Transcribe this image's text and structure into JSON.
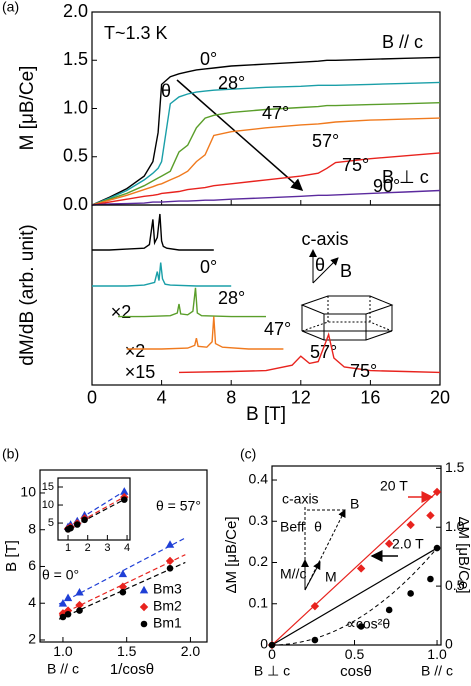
{
  "panel_labels": [
    "(a)",
    "(b)",
    "(c)"
  ],
  "chart_data": [
    {
      "type": "line",
      "x": [
        0,
        1,
        2,
        3,
        3.5,
        3.8,
        4,
        4.5,
        5,
        5.5,
        6,
        6.5,
        7,
        8,
        10,
        12,
        13,
        13.5,
        14,
        16,
        18,
        20
      ],
      "xlim": [
        0,
        20
      ],
      "xticks": [
        0,
        4,
        8,
        12,
        16,
        20
      ],
      "show_xtick_labels": false,
      "ylim": [
        0,
        2
      ],
      "yticks": [
        {
          "value": 0,
          "label": "0.0"
        },
        0.5,
        {
          "value": 1,
          "label": "1.0"
        },
        1.5,
        {
          "value": 2,
          "label": "2.0"
        }
      ],
      "ylabel": "M [μB/Ce]",
      "annotations": [
        "T~1.3 K",
        "B // c",
        "B ⊥ c",
        "θ"
      ],
      "series": [
        {
          "name": "0°",
          "color": "#000000",
          "values": [
            0,
            0.08,
            0.17,
            0.3,
            0.45,
            0.75,
            1.25,
            1.33,
            1.36,
            1.38,
            1.4,
            1.41,
            1.42,
            1.44,
            1.46,
            1.48,
            1.49,
            1.5,
            1.5,
            1.51,
            1.52,
            1.53
          ]
        },
        {
          "name": "28°",
          "color": "#1a9fa8",
          "values": [
            0,
            0.07,
            0.15,
            0.26,
            0.33,
            0.38,
            0.45,
            1.05,
            1.12,
            1.15,
            1.17,
            1.18,
            1.19,
            1.2,
            1.22,
            1.23,
            1.24,
            1.24,
            1.24,
            1.25,
            1.26,
            1.27
          ]
        },
        {
          "name": "47°",
          "color": "#5a9e2a",
          "values": [
            0,
            0.06,
            0.12,
            0.2,
            0.25,
            0.28,
            0.3,
            0.35,
            0.55,
            0.62,
            0.8,
            0.9,
            0.93,
            0.96,
            0.99,
            1.01,
            1.02,
            1.03,
            1.03,
            1.04,
            1.05,
            1.06
          ]
        },
        {
          "name": "57°",
          "color": "#f07a1e",
          "values": [
            0,
            0.05,
            0.1,
            0.16,
            0.19,
            0.21,
            0.22,
            0.26,
            0.3,
            0.35,
            0.45,
            0.52,
            0.72,
            0.76,
            0.8,
            0.83,
            0.84,
            0.85,
            0.86,
            0.88,
            0.89,
            0.9
          ]
        },
        {
          "name": "75°",
          "color": "#e8231e",
          "values": [
            0,
            0.03,
            0.06,
            0.09,
            0.1,
            0.11,
            0.12,
            0.13,
            0.14,
            0.16,
            0.17,
            0.18,
            0.2,
            0.22,
            0.26,
            0.3,
            0.33,
            0.38,
            0.44,
            0.48,
            0.51,
            0.54
          ]
        },
        {
          "name": "90°",
          "color": "#5b2a9e",
          "values": [
            0,
            0.01,
            0.015,
            0.02,
            0.03,
            0.03,
            0.03,
            0.035,
            0.04,
            0.04,
            0.045,
            0.05,
            0.05,
            0.06,
            0.075,
            0.09,
            0.1,
            0.1,
            0.105,
            0.12,
            0.135,
            0.15
          ]
        }
      ]
    },
    {
      "type": "line",
      "xlim": [
        0,
        20
      ],
      "xticks": [
        0,
        4,
        8,
        12,
        16,
        20
      ],
      "xlabel": "B [T]",
      "ylim": [
        0,
        10
      ],
      "ylabel": "dM/dB (arb. unit)",
      "annotations": [
        "×2",
        "×2",
        "×15",
        "c-axis",
        "θ",
        "B"
      ],
      "series": [
        {
          "name": "0°",
          "color": "#000000",
          "x": [
            0,
            1,
            2,
            3,
            3.3,
            3.5,
            3.6,
            3.75,
            3.9,
            4.0,
            4.1,
            4.3,
            5,
            6,
            7
          ],
          "values": [
            7.5,
            7.5,
            7.55,
            7.6,
            7.8,
            9.2,
            7.9,
            8.2,
            9.5,
            8.0,
            7.7,
            7.6,
            7.5,
            7.5,
            7.5
          ]
        },
        {
          "name": "28°",
          "color": "#1a9fa8",
          "x": [
            0,
            2,
            3,
            3.6,
            3.75,
            3.85,
            3.95,
            4.05,
            4.2,
            4.5,
            6,
            8
          ],
          "values": [
            5.5,
            5.5,
            5.55,
            5.7,
            6.3,
            5.8,
            6.8,
            5.9,
            5.6,
            5.55,
            5.5,
            5.5
          ]
        },
        {
          "name": "47°",
          "color": "#5a9e2a",
          "x": [
            1.5,
            3,
            4.5,
            4.9,
            5.0,
            5.1,
            5.5,
            5.8,
            5.95,
            6.05,
            6.3,
            8,
            10
          ],
          "values": [
            3.8,
            3.8,
            3.85,
            4.0,
            4.5,
            3.95,
            3.9,
            4.1,
            5.4,
            4.0,
            3.85,
            3.8,
            3.8
          ]
        },
        {
          "name": "57°",
          "color": "#f07a1e",
          "x": [
            2,
            4,
            5.5,
            5.9,
            6.0,
            6.1,
            6.6,
            6.9,
            7.0,
            7.1,
            7.5,
            9,
            11
          ],
          "values": [
            2.0,
            2.0,
            2.05,
            2.2,
            2.6,
            2.15,
            2.1,
            2.4,
            3.8,
            2.3,
            2.1,
            2.0,
            2.0
          ]
        },
        {
          "name": "75°",
          "color": "#e8231e",
          "x": [
            5,
            8,
            10,
            11.5,
            12,
            12.5,
            13,
            13.4,
            13.6,
            13.9,
            14.5,
            16,
            18,
            20
          ],
          "values": [
            0.7,
            0.75,
            0.8,
            1.1,
            1.6,
            1.2,
            1.3,
            2.3,
            2.8,
            1.5,
            1.0,
            0.8,
            0.75,
            0.7
          ]
        }
      ]
    },
    {
      "type": "scatter",
      "fit": "linear",
      "x": [
        1.0,
        1.04,
        1.13,
        1.47,
        1.84
      ],
      "xlim": [
        0.82,
        2.13
      ],
      "xticks": [
        {
          "value": 1,
          "label": "1.0"
        },
        1.5,
        {
          "value": 2,
          "label": "2.0"
        }
      ],
      "xlabel": "1/cosθ",
      "ylim": [
        1.89,
        11.25
      ],
      "yticks": [
        2,
        4,
        6,
        8,
        10
      ],
      "ylabel": "B [T]",
      "annotations": [
        "θ = 0°",
        "θ = 57°",
        "B // c"
      ],
      "series": [
        {
          "name": "Bm3",
          "color": "#1f3fd6",
          "marker": "triangle",
          "values": [
            4.0,
            4.3,
            4.6,
            5.6,
            7.2
          ]
        },
        {
          "name": "Bm2",
          "color": "#e8231e",
          "marker": "diamond",
          "values": [
            3.45,
            3.6,
            3.9,
            4.9,
            6.3
          ]
        },
        {
          "name": "Bm1",
          "color": "#000000",
          "marker": "circle",
          "values": [
            3.25,
            3.4,
            3.6,
            4.6,
            5.9
          ]
        }
      ]
    },
    {
      "type": "scatter",
      "fit": "linear",
      "x": [
        1.0,
        1.13,
        1.47,
        1.84,
        3.86
      ],
      "xlim": [
        0.49,
        4.15
      ],
      "xticks": [
        1,
        2,
        3,
        4
      ],
      "ylim": [
        0.3,
        17.5
      ],
      "yticks": [
        5,
        10,
        15
      ],
      "series": [
        {
          "color": "#1f3fd6",
          "marker": "triangle",
          "values": [
            4.0,
            4.6,
            5.6,
            7.2,
            13.8
          ]
        },
        {
          "color": "#e8231e",
          "marker": "diamond",
          "values": [
            3.45,
            3.9,
            4.9,
            6.3,
            12.2
          ]
        },
        {
          "color": "#000000",
          "marker": "circle",
          "values": [
            3.25,
            3.6,
            4.6,
            5.9,
            11.5
          ]
        }
      ]
    },
    {
      "type": "scatter",
      "guide": "origin",
      "x": [
        0,
        0.26,
        0.54,
        0.71,
        0.84,
        0.96,
        1.0
      ],
      "xlim": [
        0,
        1.024
      ],
      "xticks": [
        0,
        0.5,
        {
          "value": 1,
          "label": "1.0"
        }
      ],
      "xlabel": "cosθ",
      "ylim": [
        0,
        0.434
      ],
      "yticks": [
        0,
        0.1,
        0.2,
        0.3,
        0.4
      ],
      "ylabel": "ΔM [μB/Ce]",
      "y2lim": [
        0,
        1.52
      ],
      "y2ticks": [
        0,
        0.5,
        {
          "value": 1,
          "label": "1.0"
        },
        1.5
      ],
      "y2label": "ΔM [μB/Ce]",
      "annotations": [
        "∝cos²θ",
        "c-axis",
        "B",
        "Beff",
        "θ",
        "M//c",
        "M",
        "B ⊥ c",
        "B // c"
      ],
      "series": [
        {
          "name": "20 T",
          "color": "#e8231e",
          "marker": "diamond",
          "axis": "y2",
          "values": [
            0,
            0.33,
            0.65,
            0.86,
            1.02,
            1.1,
            1.3
          ]
        },
        {
          "name": "2.0 T",
          "color": "#000000",
          "marker": "circle",
          "guide_curve": "cos2",
          "values": [
            0,
            0.012,
            0.045,
            0.085,
            0.125,
            0.16,
            0.235
          ]
        }
      ]
    }
  ]
}
